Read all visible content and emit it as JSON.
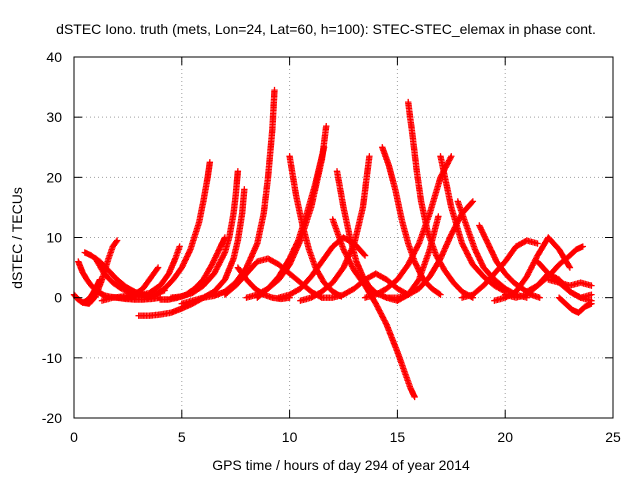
{
  "chart_data": {
    "type": "scatter",
    "title": "dSTEC Iono. truth (mets, Lon=24, Lat=60, h=100): STEC-STEC_elemax in phase cont.",
    "xlabel": "GPS time / hours of day 294 of year 2014",
    "ylabel": "dSTEC  / TECUs",
    "xlim": [
      0,
      25
    ],
    "ylim": [
      -20,
      40
    ],
    "xticks": [
      0,
      5,
      10,
      15,
      20,
      25
    ],
    "yticks": [
      -20,
      -10,
      0,
      10,
      20,
      30,
      40
    ],
    "xtick_labels": [
      "0",
      "5",
      "10",
      "15",
      "20",
      "25"
    ],
    "ytick_labels": [
      "-20",
      "-10",
      "0",
      "10",
      "20",
      "30",
      "40"
    ],
    "grid": true,
    "marker": "+",
    "color": "#ff0000",
    "series": [
      {
        "x": [
          0.0,
          0.2,
          0.4,
          0.6,
          0.8,
          1.0,
          1.2
        ],
        "y": [
          0.5,
          -0.3,
          -0.8,
          -0.5,
          0.3,
          1.5,
          3.0
        ]
      },
      {
        "x": [
          0.2,
          0.4,
          0.6,
          0.8,
          1.0,
          1.2,
          1.4,
          1.6,
          1.8,
          2.0,
          2.4,
          2.8,
          3.2,
          3.6,
          4.0
        ],
        "y": [
          6.0,
          4.2,
          3.0,
          2.0,
          1.3,
          0.8,
          0.4,
          0.2,
          0.1,
          0.0,
          -0.2,
          -0.3,
          -0.3,
          -0.2,
          0.0
        ]
      },
      {
        "x": [
          0.5,
          0.8,
          1.2,
          1.6,
          2.0,
          2.4,
          2.8,
          3.2,
          3.6
        ],
        "y": [
          7.5,
          7.0,
          6.0,
          4.5,
          3.0,
          1.8,
          1.0,
          0.5,
          0.2
        ]
      },
      {
        "x": [
          0.1,
          0.4,
          0.7,
          1.0,
          1.3,
          1.6,
          1.8,
          2.0
        ],
        "y": [
          0.0,
          -0.8,
          -1.0,
          0.2,
          3.0,
          6.5,
          8.5,
          9.5
        ]
      },
      {
        "x": [
          1.0,
          1.4,
          1.8,
          2.2,
          2.6,
          3.0,
          3.4,
          3.8,
          4.2
        ],
        "y": [
          6.5,
          4.0,
          2.5,
          1.5,
          0.8,
          0.5,
          0.4,
          0.6,
          1.2
        ]
      },
      {
        "x": [
          1.3,
          1.8,
          2.3,
          2.8,
          3.2,
          3.6,
          3.9
        ],
        "y": [
          -0.5,
          0.0,
          0.2,
          0.5,
          1.5,
          3.5,
          5.0
        ]
      },
      {
        "x": [
          2.0,
          2.5,
          3.0,
          3.5,
          4.0,
          4.4,
          4.7,
          4.9
        ],
        "y": [
          0.0,
          0.0,
          0.3,
          0.8,
          2.0,
          4.0,
          6.5,
          8.5
        ]
      },
      {
        "x": [
          3.4,
          3.8,
          4.2,
          4.6,
          5.0,
          5.4,
          5.8,
          6.0,
          6.2,
          6.3
        ],
        "y": [
          0.0,
          0.5,
          1.5,
          3.0,
          5.0,
          8.0,
          12.5,
          16.0,
          20.0,
          22.5
        ]
      },
      {
        "x": [
          4.0,
          4.4,
          4.8,
          5.2,
          5.6,
          6.0,
          6.4,
          6.8,
          7.0
        ],
        "y": [
          -0.3,
          -0.3,
          0.0,
          0.5,
          1.5,
          3.0,
          5.5,
          8.5,
          10.0
        ]
      },
      {
        "x": [
          4.5,
          5.0,
          5.5,
          6.0,
          6.5,
          7.0,
          7.2,
          7.4,
          7.5,
          7.6
        ],
        "y": [
          0.0,
          0.2,
          0.8,
          2.0,
          4.0,
          7.5,
          10.0,
          14.0,
          17.0,
          21.0
        ]
      },
      {
        "x": [
          3.0,
          3.5,
          4.0,
          4.5,
          5.0,
          5.5,
          6.0,
          6.5
        ],
        "y": [
          -3.0,
          -3.0,
          -2.8,
          -2.5,
          -1.8,
          -1.0,
          0.0,
          1.0
        ]
      },
      {
        "x": [
          5.0,
          5.5,
          6.0,
          6.5,
          7.0,
          7.4,
          7.6,
          7.8,
          7.9
        ],
        "y": [
          -1.0,
          -0.5,
          0.0,
          1.0,
          3.0,
          6.5,
          9.5,
          14.0,
          18.0
        ]
      },
      {
        "x": [
          6.0,
          6.5,
          7.0,
          7.5,
          8.0,
          8.5,
          8.8,
          9.0,
          9.2,
          9.3
        ],
        "y": [
          0.0,
          0.3,
          1.0,
          2.5,
          5.0,
          9.0,
          14.0,
          20.0,
          28.0,
          34.5
        ]
      },
      {
        "x": [
          7.0,
          7.5,
          8.0,
          8.5,
          9.0,
          9.5,
          10.0,
          10.5,
          11.0,
          11.5
        ],
        "y": [
          0.5,
          2.0,
          4.0,
          6.0,
          6.5,
          5.5,
          4.0,
          2.5,
          1.0,
          0.0
        ]
      },
      {
        "x": [
          7.6,
          8.0,
          8.4,
          8.8,
          9.2,
          9.6,
          10.0
        ],
        "y": [
          5.0,
          3.0,
          1.5,
          0.5,
          0.0,
          -0.2,
          0.0
        ]
      },
      {
        "x": [
          8.0,
          8.5,
          9.0,
          9.5,
          10.0,
          10.5,
          11.0,
          11.5,
          11.7
        ],
        "y": [
          0.0,
          0.5,
          1.5,
          3.0,
          5.5,
          9.5,
          15.0,
          23.0,
          28.5
        ]
      },
      {
        "x": [
          8.5,
          9.0,
          9.5,
          10.0,
          10.4,
          10.8,
          11.2,
          11.6
        ],
        "y": [
          0.0,
          1.5,
          3.5,
          6.5,
          9.5,
          14.0,
          19.0,
          25.0
        ]
      },
      {
        "x": [
          10.0,
          10.3,
          10.6,
          10.9,
          11.2,
          11.6,
          12.0,
          12.4
        ],
        "y": [
          23.5,
          17.0,
          12.0,
          8.0,
          5.0,
          2.5,
          1.0,
          0.2
        ]
      },
      {
        "x": [
          9.5,
          10.0,
          10.5,
          11.0,
          11.5,
          12.0,
          12.5,
          13.0,
          13.5
        ],
        "y": [
          0.0,
          0.5,
          1.5,
          3.5,
          6.0,
          8.5,
          10.0,
          9.0,
          7.0
        ]
      },
      {
        "x": [
          10.5,
          11.0,
          11.5,
          12.0,
          12.5,
          13.0,
          13.4,
          13.7
        ],
        "y": [
          -0.5,
          0.0,
          1.0,
          2.5,
          5.0,
          9.0,
          15.0,
          23.5
        ]
      },
      {
        "x": [
          12.2,
          12.5,
          12.8,
          13.1,
          13.4,
          13.7,
          14.0,
          14.5,
          15.0
        ],
        "y": [
          21.0,
          15.0,
          10.0,
          6.0,
          3.5,
          1.8,
          0.8,
          0.0,
          -0.5
        ]
      },
      {
        "x": [
          11.5,
          12.0,
          12.5,
          13.0,
          13.5,
          14.0,
          14.5,
          15.0,
          15.5
        ],
        "y": [
          0.0,
          0.0,
          0.5,
          1.5,
          3.0,
          4.0,
          3.0,
          1.5,
          0.5
        ]
      },
      {
        "x": [
          12.0,
          12.5,
          13.0,
          13.5,
          14.0,
          14.5,
          15.0,
          15.3,
          15.6,
          15.8
        ],
        "y": [
          13.0,
          8.0,
          4.5,
          2.0,
          -1.0,
          -4.5,
          -9.0,
          -12.0,
          -15.0,
          -16.5
        ]
      },
      {
        "x": [
          14.3,
          14.6,
          14.9,
          15.2,
          15.5,
          15.8,
          16.2,
          16.6,
          17.0
        ],
        "y": [
          25.0,
          22.0,
          18.0,
          13.0,
          9.0,
          6.0,
          3.0,
          1.5,
          0.5
        ]
      },
      {
        "x": [
          13.5,
          14.0,
          14.5,
          15.0,
          15.5,
          16.0,
          16.5,
          17.0,
          17.5
        ],
        "y": [
          0.0,
          0.5,
          1.5,
          3.0,
          5.5,
          9.0,
          14.0,
          20.0,
          23.5
        ]
      },
      {
        "x": [
          15.5,
          15.7,
          15.9,
          16.1,
          16.4,
          16.8,
          17.2,
          17.6,
          18.0,
          18.5
        ],
        "y": [
          32.5,
          27.0,
          21.0,
          16.0,
          11.0,
          7.0,
          4.5,
          2.5,
          1.0,
          0.0
        ]
      },
      {
        "x": [
          14.5,
          15.0,
          15.5,
          16.0,
          16.5,
          17.0,
          17.5,
          18.0,
          18.5
        ],
        "y": [
          0.0,
          0.0,
          0.5,
          1.5,
          3.5,
          6.5,
          10.5,
          14.0,
          16.0
        ]
      },
      {
        "x": [
          15.0,
          15.5,
          16.0,
          16.5,
          16.9
        ],
        "y": [
          -0.5,
          0.5,
          3.0,
          8.0,
          13.5
        ]
      },
      {
        "x": [
          17.0,
          17.5,
          18.0,
          18.5,
          19.0,
          19.5,
          20.0
        ],
        "y": [
          23.5,
          15.0,
          9.0,
          5.5,
          3.5,
          2.0,
          1.0
        ]
      },
      {
        "x": [
          17.8,
          18.2,
          18.6,
          19.0,
          19.5,
          20.0,
          20.5,
          21.0
        ],
        "y": [
          16.0,
          12.0,
          8.0,
          5.0,
          3.0,
          1.5,
          0.5,
          0.0
        ]
      },
      {
        "x": [
          18.0,
          18.5,
          19.0,
          19.5,
          20.0,
          20.5,
          21.0,
          21.5
        ],
        "y": [
          0.0,
          0.5,
          2.0,
          4.0,
          6.0,
          8.5,
          9.5,
          9.0
        ]
      },
      {
        "x": [
          18.8,
          19.2,
          19.6,
          20.0,
          20.4,
          20.8,
          21.2,
          21.6
        ],
        "y": [
          12.0,
          9.0,
          6.0,
          4.0,
          2.5,
          1.5,
          0.5,
          0.0
        ]
      },
      {
        "x": [
          19.5,
          20.0,
          20.5,
          21.0,
          21.5,
          22.0,
          22.5,
          23.0
        ],
        "y": [
          -0.5,
          0.0,
          1.0,
          3.5,
          7.0,
          10.0,
          8.0,
          5.0
        ]
      },
      {
        "x": [
          20.0,
          20.5,
          21.0,
          21.5,
          22.0,
          22.5,
          23.0,
          23.5,
          24.0
        ],
        "y": [
          0.5,
          0.0,
          0.5,
          2.0,
          4.0,
          3.0,
          1.0,
          0.0,
          -0.5
        ]
      },
      {
        "x": [
          21.0,
          21.5,
          22.0,
          22.5,
          23.0,
          23.3,
          23.6
        ],
        "y": [
          1.0,
          2.0,
          3.5,
          5.5,
          7.0,
          8.0,
          8.5
        ]
      },
      {
        "x": [
          22.0,
          22.5,
          23.0,
          23.5,
          24.0
        ],
        "y": [
          3.0,
          2.5,
          2.0,
          2.5,
          2.0
        ]
      },
      {
        "x": [
          22.5,
          22.8,
          23.1,
          23.4,
          23.7,
          24.0
        ],
        "y": [
          0.0,
          -1.0,
          -2.0,
          -2.5,
          -1.5,
          -1.0
        ]
      },
      {
        "x": [
          21.5,
          22.0,
          22.5,
          23.0,
          23.5,
          24.0
        ],
        "y": [
          6.0,
          4.0,
          2.5,
          1.0,
          0.0,
          0.5
        ]
      }
    ]
  }
}
